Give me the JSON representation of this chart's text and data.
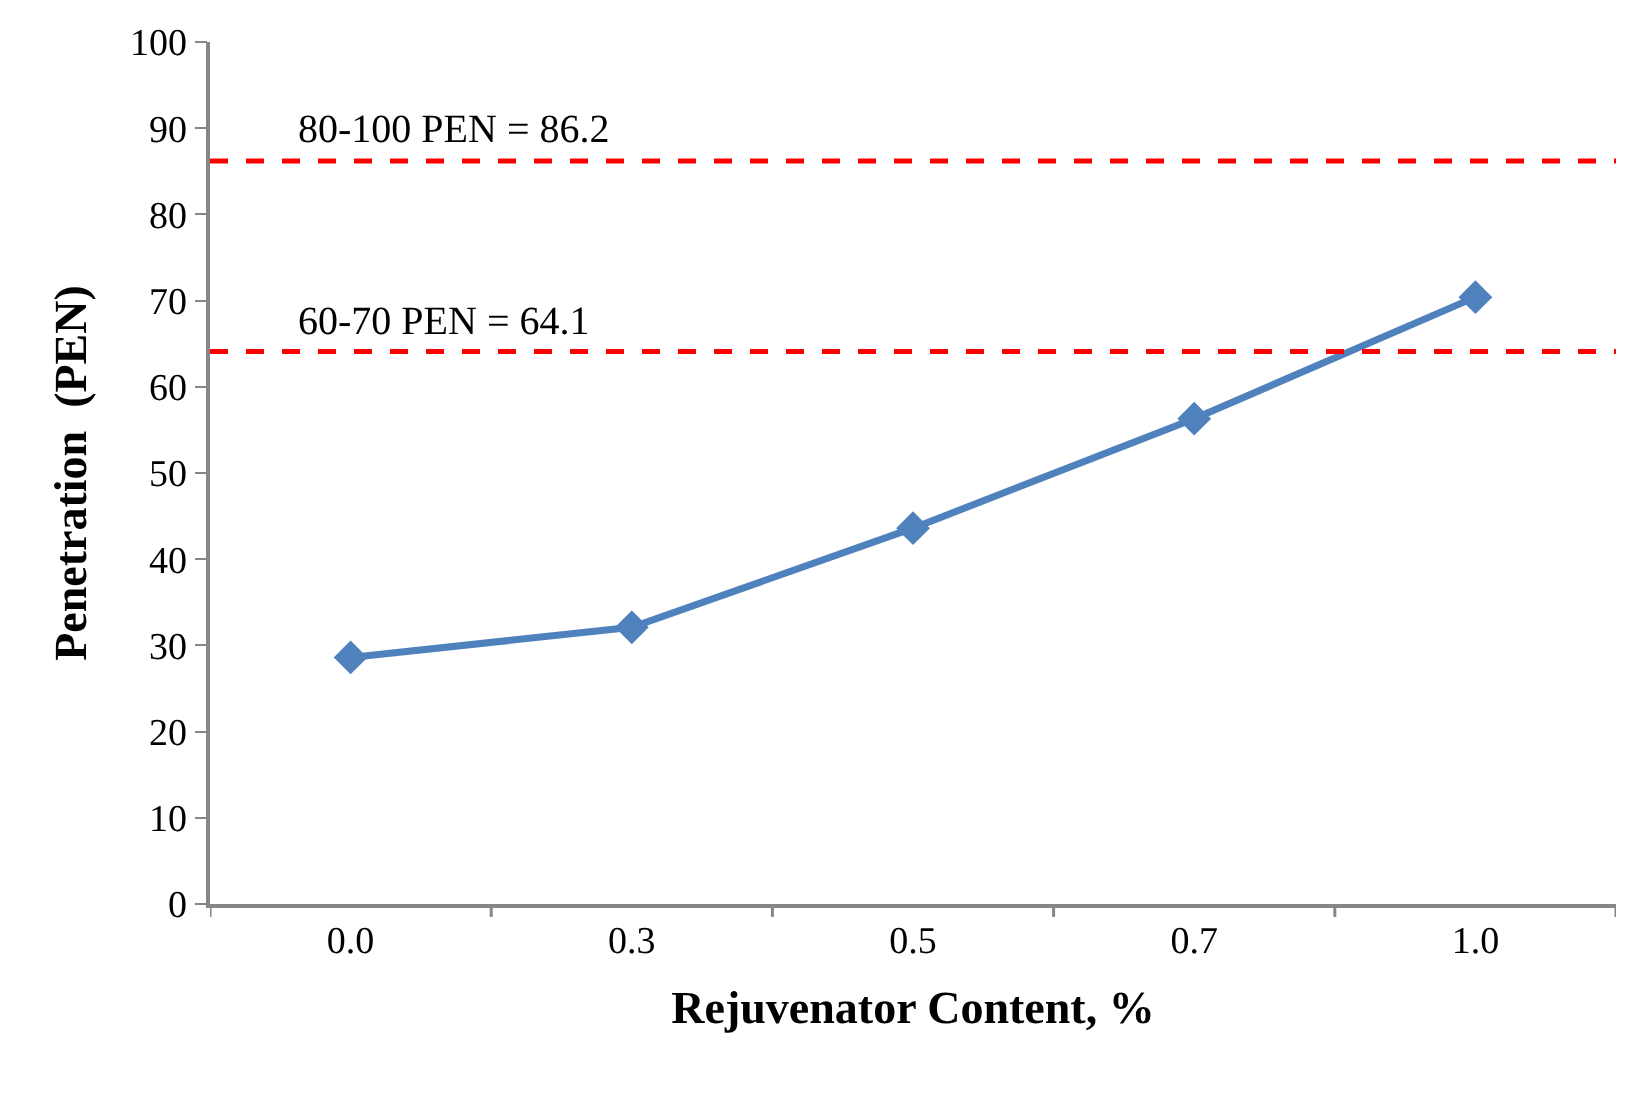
{
  "chart_data": {
    "type": "line",
    "xlabel": "Rejuvenator Content, %",
    "ylabel": "Penetration  (PEN)",
    "categories": [
      "0.0",
      "0.3",
      "0.5",
      "0.7",
      "1.0"
    ],
    "series": [
      {
        "color": "#4f81bd",
        "values": [
          28.6,
          32.1,
          43.6,
          56.3,
          70.4
        ]
      }
    ],
    "ylim": [
      0,
      100
    ],
    "yticks": [
      0,
      10,
      20,
      30,
      40,
      50,
      60,
      70,
      80,
      90,
      100
    ],
    "ref_lines": [
      {
        "axis": "y",
        "value": 86.2,
        "label": "80-100 PEN = 86.2",
        "color": "#ff0000",
        "line_style": "dashed"
      },
      {
        "axis": "y",
        "value": 64.1,
        "label": "60-70 PEN = 64.1",
        "color": "#ff0000",
        "line_style": "dashed"
      }
    ],
    "marker": "diamond",
    "line_style": "solid"
  }
}
